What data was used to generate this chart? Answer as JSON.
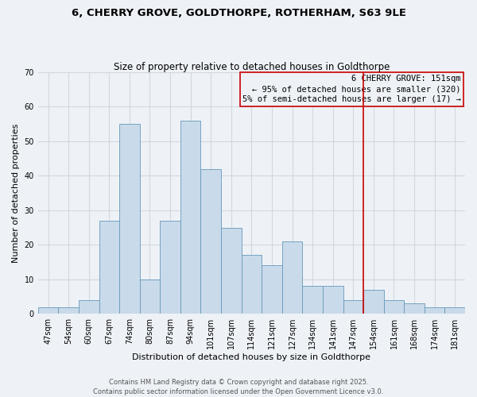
{
  "title": "6, CHERRY GROVE, GOLDTHORPE, ROTHERHAM, S63 9LE",
  "subtitle": "Size of property relative to detached houses in Goldthorpe",
  "xlabel": "Distribution of detached houses by size in Goldthorpe",
  "ylabel": "Number of detached properties",
  "bar_labels": [
    "47sqm",
    "54sqm",
    "60sqm",
    "67sqm",
    "74sqm",
    "80sqm",
    "87sqm",
    "94sqm",
    "101sqm",
    "107sqm",
    "114sqm",
    "121sqm",
    "127sqm",
    "134sqm",
    "141sqm",
    "147sqm",
    "154sqm",
    "161sqm",
    "168sqm",
    "174sqm",
    "181sqm"
  ],
  "bar_values": [
    2,
    2,
    4,
    27,
    55,
    10,
    27,
    56,
    42,
    25,
    17,
    14,
    21,
    8,
    8,
    4,
    7,
    4,
    3,
    2,
    2
  ],
  "bar_color": "#c9daea",
  "bar_edge_color": "#6699bb",
  "ylim": [
    0,
    70
  ],
  "yticks": [
    0,
    10,
    20,
    30,
    40,
    50,
    60,
    70
  ],
  "grid_color": "#d0d8e0",
  "bg_color": "#eef2f7",
  "property_label": "6 CHERRY GROVE: 151sqm",
  "legend_line1": "← 95% of detached houses are smaller (320)",
  "legend_line2": "5% of semi-detached houses are larger (17) →",
  "vline_x_index": 15,
  "vline_color": "#cc0000",
  "footer_line1": "Contains HM Land Registry data © Crown copyright and database right 2025.",
  "footer_line2": "Contains public sector information licensed under the Open Government Licence v3.0.",
  "title_fontsize": 9.5,
  "subtitle_fontsize": 8.5,
  "axis_label_fontsize": 8,
  "tick_fontsize": 7,
  "legend_fontsize": 7.5,
  "footer_fontsize": 6
}
